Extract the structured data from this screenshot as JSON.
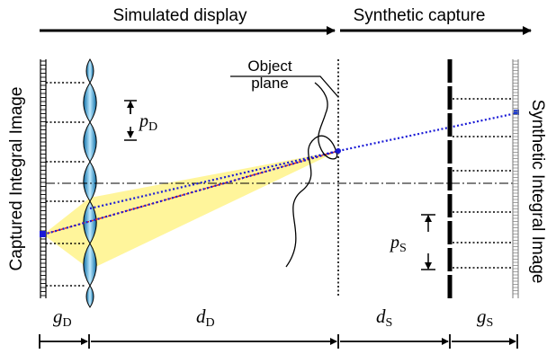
{
  "headers": {
    "simulated_display": "Simulated display",
    "synthetic_capture": "Synthetic capture"
  },
  "labels": {
    "object_plane_line1": "Object",
    "object_plane_line2": "plane",
    "captured_integral_image": "Captured Integral Image",
    "synthetic_integral_image": "Synthetic Integral Image"
  },
  "symbols": {
    "p_D": {
      "main": "p",
      "sub": "D"
    },
    "p_S": {
      "main": "p",
      "sub": "S"
    },
    "g_D": {
      "main": "g",
      "sub": "D"
    },
    "d_D": {
      "main": "d",
      "sub": "D"
    },
    "d_S": {
      "main": "d",
      "sub": "S"
    },
    "g_S": {
      "main": "g",
      "sub": "S"
    }
  },
  "colors": {
    "lens_fill": "#2aa7dc",
    "ray_cone": "#fff38a",
    "chief_ray": "#1a1ad6",
    "center_ray": "#e02020",
    "ink": "#000000"
  }
}
